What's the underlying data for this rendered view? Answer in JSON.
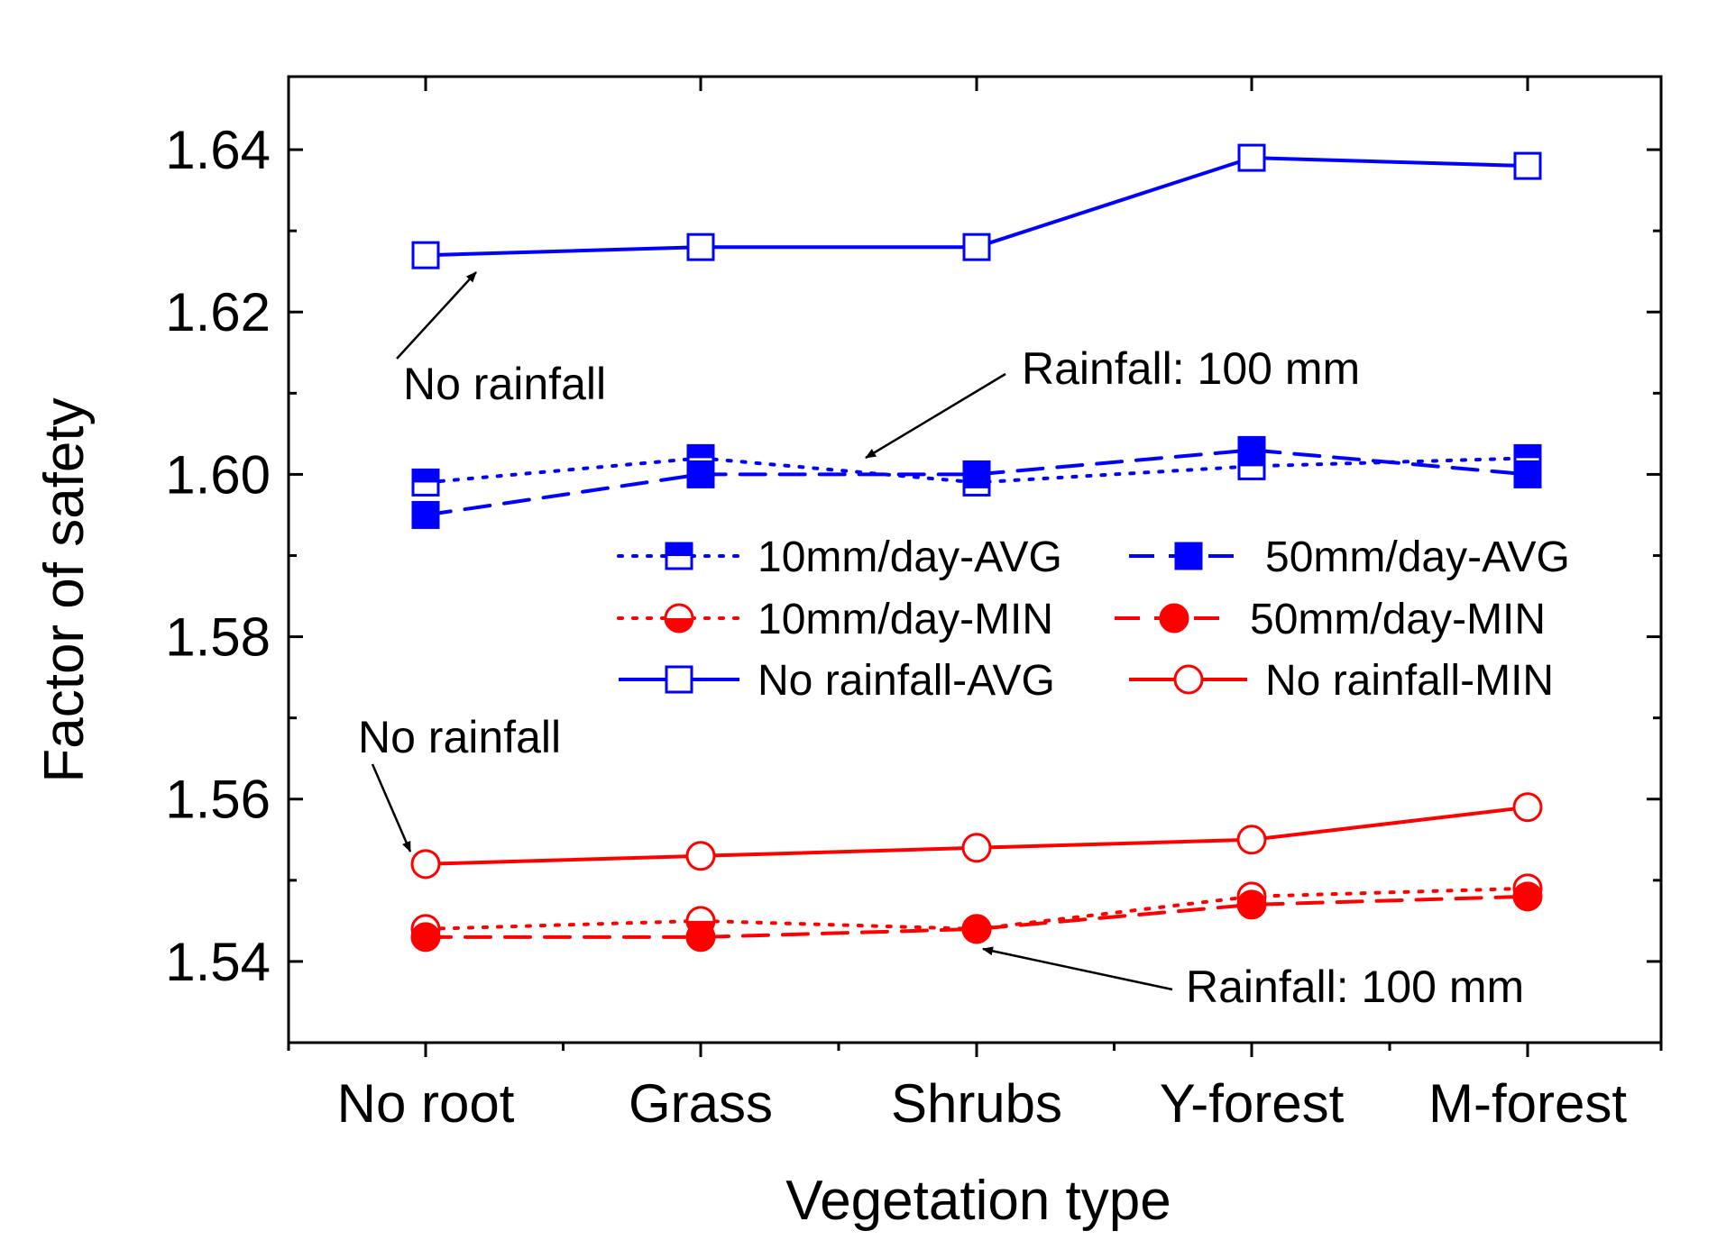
{
  "chart_data": {
    "type": "line",
    "title": "",
    "xlabel": "Vegetation type",
    "ylabel": "Factor of safety",
    "categories": [
      "No root",
      "Grass",
      "Shrubs",
      "Y-forest",
      "M-forest"
    ],
    "ylim": [
      1.53,
      1.649
    ],
    "yticks": [
      "1.54",
      "1.56",
      "1.58",
      "1.60",
      "1.62",
      "1.64"
    ],
    "grid": false,
    "legend_position": "center-right",
    "series": [
      {
        "name": "10mm/day-AVG",
        "values": [
          1.599,
          1.602,
          1.599,
          1.601,
          1.602
        ],
        "color": "#0000ff",
        "dash": "dotted",
        "marker": "half-square"
      },
      {
        "name": "50mm/day-AVG",
        "values": [
          1.595,
          1.6,
          1.6,
          1.603,
          1.6
        ],
        "color": "#0000ff",
        "dash": "dashed",
        "marker": "filled-square"
      },
      {
        "name": "10mm/day-MIN",
        "values": [
          1.544,
          1.545,
          1.544,
          1.548,
          1.549
        ],
        "color": "#ff0000",
        "dash": "dotted",
        "marker": "half-circle"
      },
      {
        "name": "50mm/day-MIN",
        "values": [
          1.543,
          1.543,
          1.544,
          1.547,
          1.548
        ],
        "color": "#ff0000",
        "dash": "dashed",
        "marker": "filled-circle"
      },
      {
        "name": "No rainfall-AVG",
        "values": [
          1.627,
          1.628,
          1.628,
          1.639,
          1.638
        ],
        "color": "#0000ff",
        "dash": "solid",
        "marker": "open-square"
      },
      {
        "name": "No rainfall-MIN",
        "values": [
          1.552,
          1.553,
          1.554,
          1.555,
          1.559
        ],
        "color": "#ff0000",
        "dash": "solid",
        "marker": "open-circle"
      }
    ],
    "annotations": [
      {
        "id": "ann-top-norain",
        "text": "No rainfall"
      },
      {
        "id": "ann-top-rain",
        "text": "Rainfall: 100 mm"
      },
      {
        "id": "ann-bottom-norain",
        "text": "No rainfall"
      },
      {
        "id": "ann-bottom-rain",
        "text": "Rainfall: 100 mm"
      }
    ]
  }
}
